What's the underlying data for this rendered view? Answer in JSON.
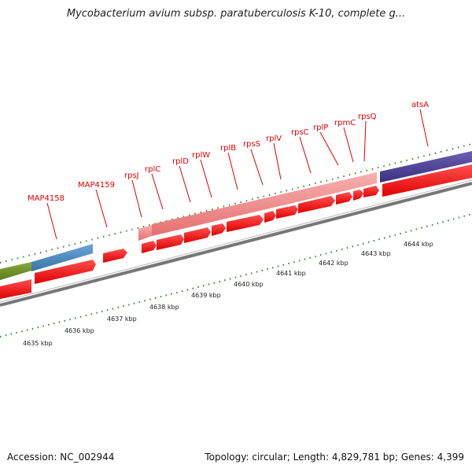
{
  "header": {
    "title": "Mycobacterium avium subsp. paratuberculosis K-10, complete g..."
  },
  "footer": {
    "accession": "Accession: NC_002944",
    "summary": "Topology: circular; Length: 4,829,781 bp; Genes: 4,399"
  },
  "gene_labels": [
    "MAP4158",
    "MAP4159",
    "rpsJ",
    "rplC",
    "rplD",
    "rplW",
    "rplB",
    "rpsS",
    "rplV",
    "rpsC",
    "rplP",
    "rpmC",
    "rpsQ",
    "atsA"
  ],
  "kbp_labels": [
    "4635 kbp",
    "4636 kbp",
    "4637 kbp",
    "4638 kbp",
    "4639 kbp",
    "4640 kbp",
    "4641 kbp",
    "4642 kbp",
    "4643 kbp",
    "4644 kbp"
  ],
  "colors": {
    "gene_label": "#e00000",
    "cds_arrow": "#ff0000",
    "rrna_pink": "#f08080",
    "band_green": "#6b8e23",
    "band_blue": "#4682b4",
    "band_purple": "#483d8b",
    "tick_green": "#228b22",
    "backbone": "#808080"
  }
}
